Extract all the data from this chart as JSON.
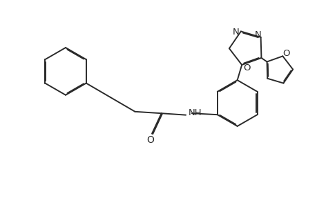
{
  "background_color": "#ffffff",
  "line_color": "#2a2a2a",
  "line_width": 1.4,
  "dbo": 0.018,
  "font_size": 8.5,
  "fig_width": 4.6,
  "fig_height": 3.0,
  "xlim": [
    0,
    9.2
  ],
  "ylim": [
    0,
    6.0
  ]
}
